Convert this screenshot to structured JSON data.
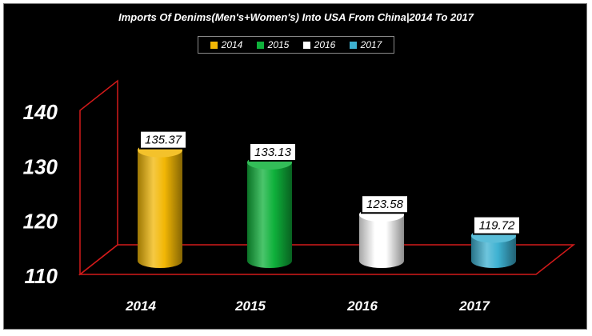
{
  "chart_data": {
    "type": "bar",
    "title": "Imports Of Denims(Men's+Women's) Into USA From China|2014 To 2017",
    "categories": [
      "2014",
      "2015",
      "2016",
      "2017"
    ],
    "values": [
      135.37,
      133.13,
      123.58,
      119.72
    ],
    "value_labels": [
      "135.37",
      "133.13",
      "123.58",
      "119.72"
    ],
    "legend": [
      "2014",
      "2015",
      "2016",
      "2017"
    ],
    "colors": [
      "#f2b705",
      "#0fb13b",
      "#ffffff",
      "#3db1d1"
    ],
    "ylim": [
      110,
      140
    ],
    "yticks": [
      "110",
      "120",
      "130",
      "140"
    ],
    "xlabel": "",
    "ylabel": "",
    "bar_style": "3d-cylinder",
    "legend_position": "top-center",
    "grid": false
  }
}
